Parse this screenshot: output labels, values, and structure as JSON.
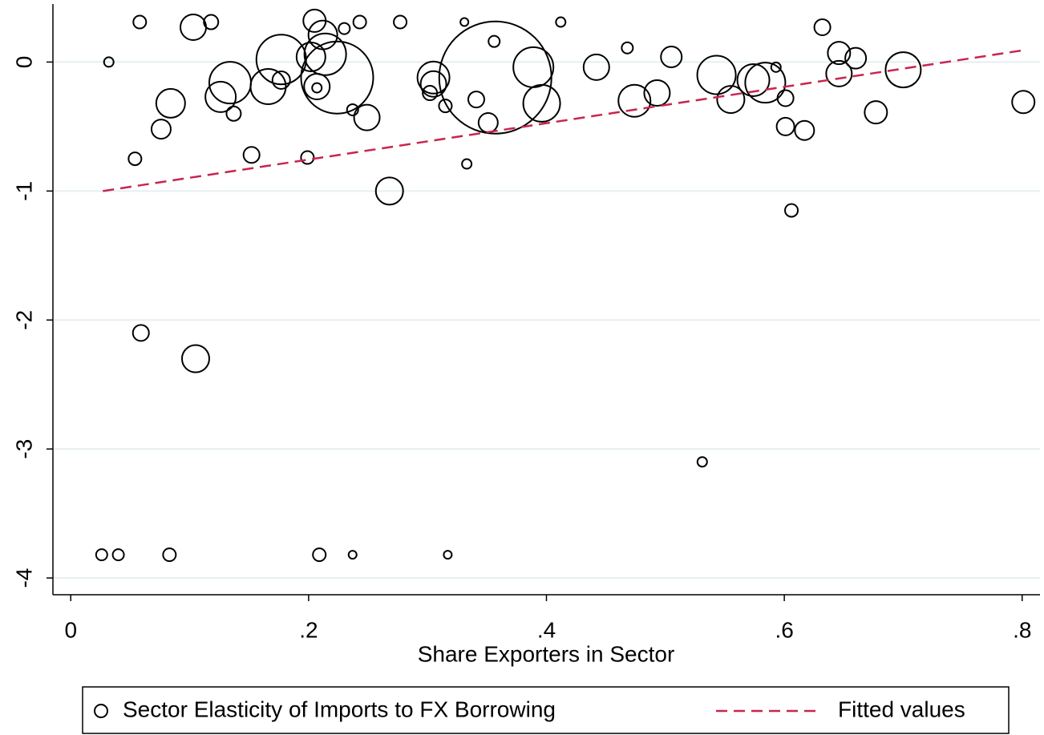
{
  "chart_data": {
    "type": "scatter",
    "x_label": "Share Exporters in Sector",
    "xlim": [
      -0.015,
      0.815
    ],
    "ylim": [
      -4.13,
      0.45
    ],
    "xticks": [
      0,
      {
        "value": 0.2,
        "label": ".2"
      },
      {
        "value": 0.4,
        "label": ".4"
      },
      {
        "value": 0.6,
        "label": ".6"
      },
      {
        "value": 0.8,
        "label": ".8"
      }
    ],
    "yticks": [
      -4,
      -3,
      -2,
      -1,
      0
    ],
    "grid": true,
    "series": [
      {
        "name": "Sector Elasticity of Imports to FX Borrowing",
        "type": "scatter",
        "color": "#000000",
        "x": [
          0.032,
          0.058,
          0.103,
          0.118,
          0.054,
          0.076,
          0.084,
          0.126,
          0.134,
          0.137,
          0.152,
          0.166,
          0.177,
          0.177,
          0.199,
          0.205,
          0.202,
          0.212,
          0.207,
          0.207,
          0.214,
          0.224,
          0.23,
          0.237,
          0.243,
          0.249,
          0.277,
          0.268,
          0.305,
          0.305,
          0.302,
          0.315,
          0.331,
          0.333,
          0.341,
          0.351,
          0.356,
          0.357,
          0.389,
          0.396,
          0.412,
          0.442,
          0.468,
          0.474,
          0.493,
          0.505,
          0.543,
          0.555,
          0.574,
          0.584,
          0.593,
          0.601,
          0.601,
          0.617,
          0.606,
          0.632,
          0.646,
          0.646,
          0.66,
          0.677,
          0.7,
          0.801,
          0.059,
          0.105,
          0.531,
          0.026,
          0.04,
          0.083,
          0.209,
          0.237,
          0.317
        ],
        "values": [
          0,
          0.31,
          0.27,
          0.31,
          -0.75,
          -0.52,
          -0.32,
          -0.27,
          -0.16,
          -0.4,
          -0.72,
          -0.19,
          -0.14,
          0.02,
          -0.74,
          0.32,
          0.04,
          0.21,
          -0.19,
          -0.2,
          0.06,
          -0.12,
          0.26,
          -0.37,
          0.31,
          -0.43,
          0.31,
          -1.0,
          -0.12,
          -0.17,
          -0.24,
          -0.34,
          0.31,
          -0.79,
          -0.29,
          -0.47,
          0.16,
          -0.12,
          -0.04,
          -0.32,
          0.31,
          -0.04,
          0.11,
          -0.3,
          -0.24,
          0.04,
          -0.1,
          -0.29,
          -0.14,
          -0.16,
          -0.04,
          -0.28,
          -0.5,
          -0.53,
          -1.15,
          0.27,
          0.07,
          -0.09,
          0.03,
          -0.39,
          -0.06,
          -0.31,
          -2.1,
          -2.3,
          -3.1,
          -3.82,
          -3.82,
          -3.82,
          -3.82,
          -3.82,
          -3.82
        ],
        "sizes": [
          6,
          8,
          16,
          9,
          8,
          12,
          18,
          19,
          26,
          9,
          10,
          22,
          11,
          31,
          8,
          14,
          18,
          18,
          16,
          6,
          26,
          45,
          7,
          7,
          8,
          16,
          8,
          17,
          20,
          16,
          9,
          8,
          5,
          6,
          10,
          12,
          7,
          70,
          25,
          23,
          6,
          16,
          7,
          20,
          16,
          13,
          24,
          17,
          20,
          25,
          6,
          10,
          11,
          12,
          8,
          10,
          14,
          16,
          13,
          14,
          22,
          14,
          10,
          17,
          6,
          7,
          7,
          8,
          8,
          5,
          5
        ]
      },
      {
        "name": "Fitted values",
        "type": "line",
        "color": "#c8254f",
        "x": [
          0.027,
          0.8
        ],
        "values": [
          -1.0,
          0.09
        ]
      }
    ]
  }
}
